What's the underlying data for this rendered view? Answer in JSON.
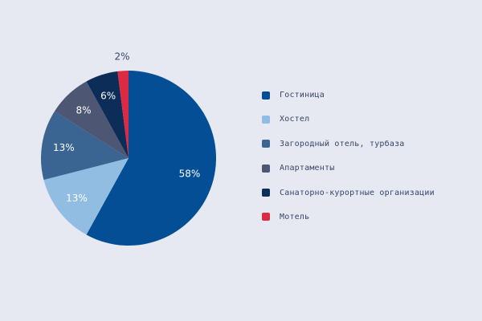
{
  "chart_data": {
    "type": "pie",
    "slices": [
      {
        "label": "Гостиница",
        "value": 58,
        "value_label": "58%",
        "color": "#034e94",
        "label_color": "#ffffff"
      },
      {
        "label": "Хостел",
        "value": 13,
        "value_label": "13%",
        "color": "#92bde2",
        "label_color": "#ffffff"
      },
      {
        "label": "Загородный отель, турбаза",
        "value": 13,
        "value_label": "13%",
        "color": "#3a6491",
        "label_color": "#ffffff"
      },
      {
        "label": "Апартаменты",
        "value": 8,
        "value_label": "8%",
        "color": "#4d5673",
        "label_color": "#ffffff"
      },
      {
        "label": "Санаторно-курортные организации",
        "value": 6,
        "value_label": "6%",
        "color": "#0b2d57",
        "label_color": "#ffffff"
      },
      {
        "label": "Мотель",
        "value": 2,
        "value_label": "2%",
        "color": "#dc2a43",
        "label_color": "#3a4566"
      }
    ],
    "legend_position": "right",
    "start_angle": "top",
    "direction": "clockwise"
  }
}
